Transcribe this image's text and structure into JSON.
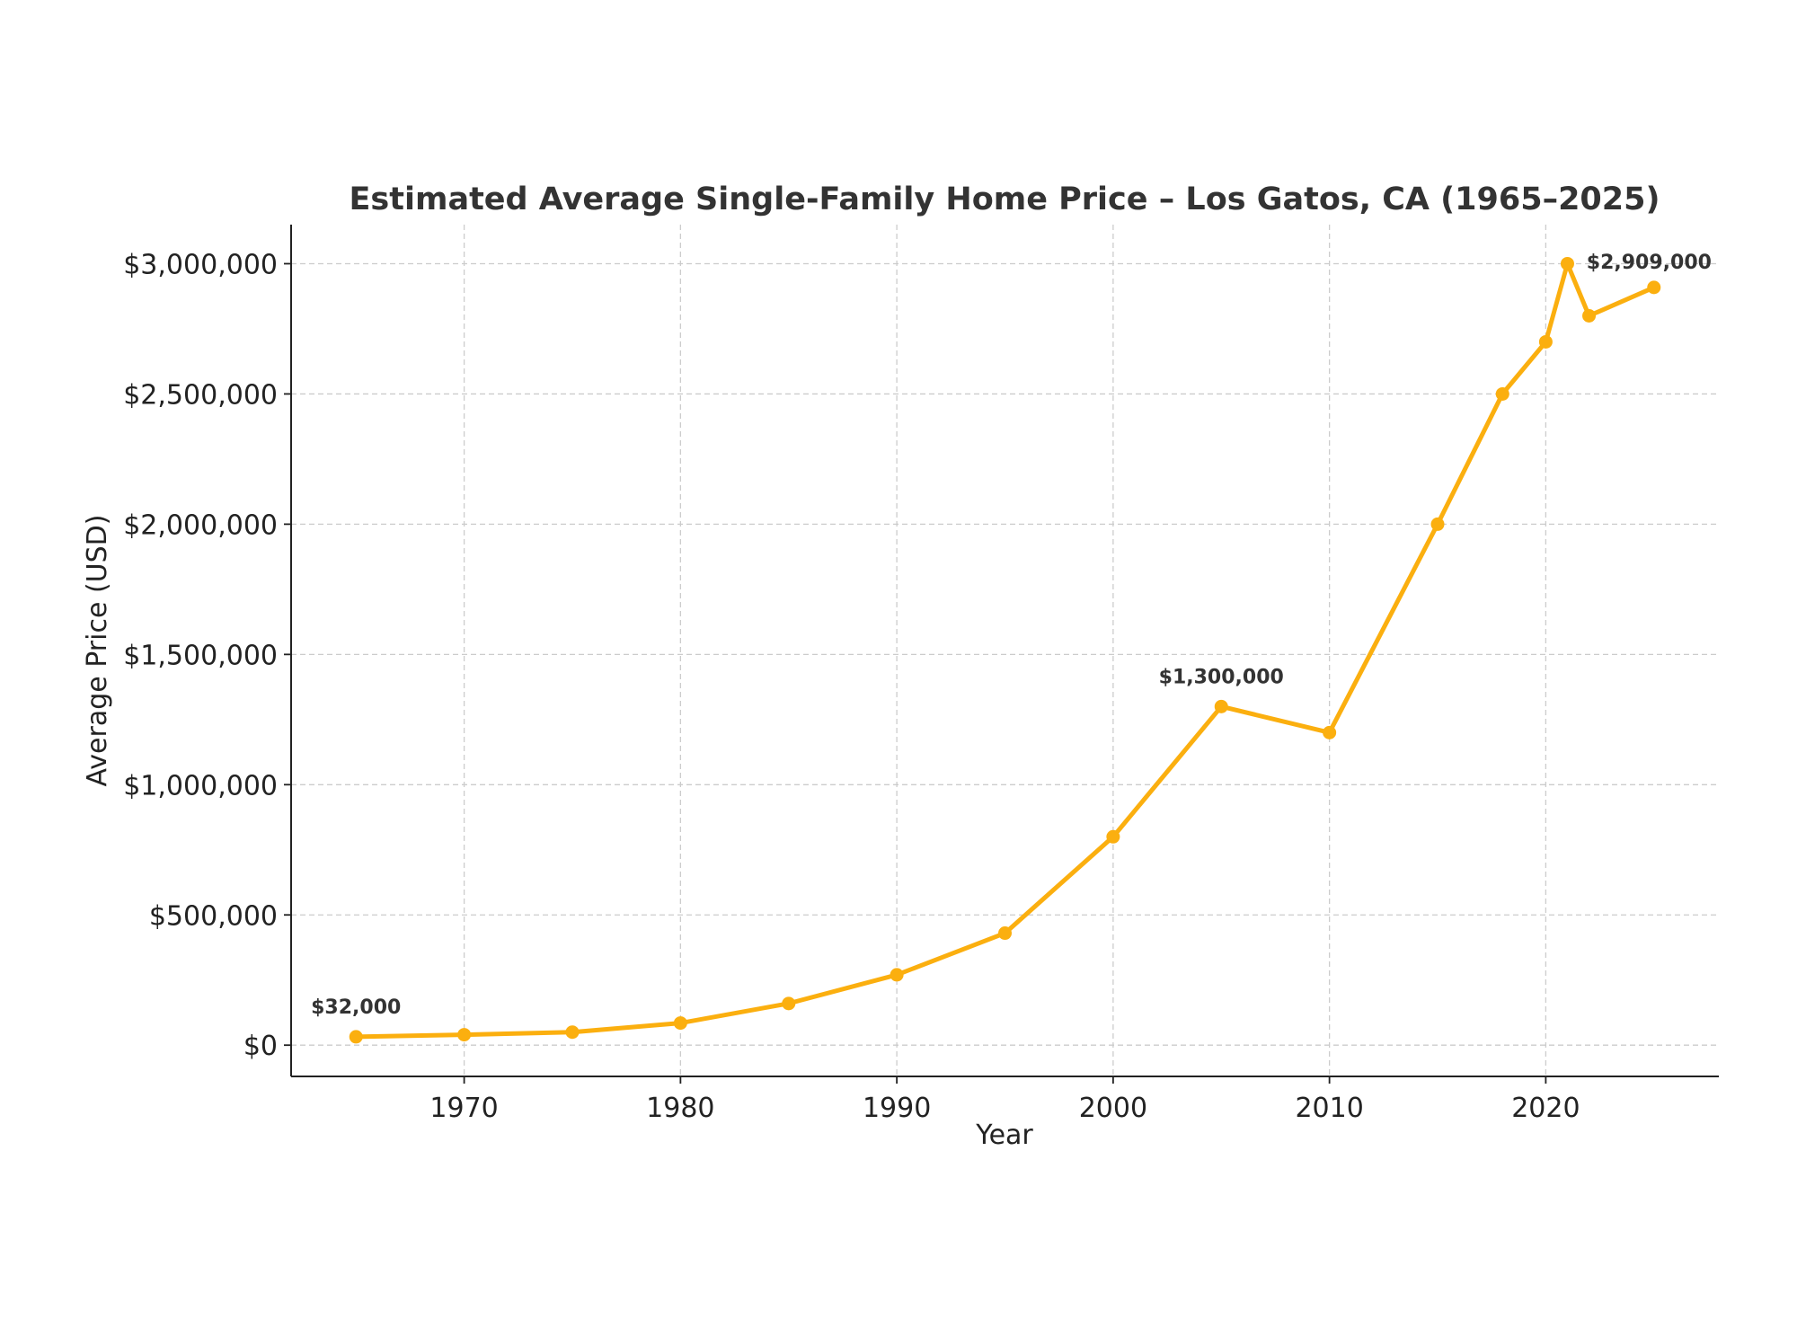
{
  "chart_data": {
    "type": "line",
    "title": "Estimated Average Single-Family Home Price – Los Gatos, CA (1965–2025)",
    "xlabel": "Year",
    "ylabel": "Average Price (USD)",
    "xlim": [
      1962,
      2028
    ],
    "ylim": [
      -120000,
      3150000
    ],
    "xticks": [
      1970,
      1980,
      1990,
      2000,
      2010,
      2020
    ],
    "xtick_labels": [
      "1970",
      "1980",
      "1990",
      "2000",
      "2010",
      "2020"
    ],
    "yticks": [
      0,
      500000,
      1000000,
      1500000,
      2000000,
      2500000,
      3000000
    ],
    "ytick_labels": [
      "$0",
      "$500,000",
      "$1,000,000",
      "$1,500,000",
      "$2,000,000",
      "$2,500,000",
      "$3,000,000"
    ],
    "grid": true,
    "color": "#FBAF0F",
    "series": [
      {
        "x": [
          1965,
          1970,
          1975,
          1980,
          1985,
          1990,
          1995,
          2000,
          2005,
          2010,
          2015,
          2018,
          2020,
          2021,
          2022,
          2025
        ],
        "values": [
          32000,
          40000,
          50000,
          85000,
          160000,
          270000,
          430000,
          800000,
          1300000,
          1200000,
          2000000,
          2500000,
          2700000,
          3000000,
          2800000,
          2909000
        ]
      }
    ],
    "annotations": [
      {
        "x": 1965,
        "y": 32000,
        "text": "$32,000"
      },
      {
        "x": 2005,
        "y": 1300000,
        "text": "$1,300,000"
      },
      {
        "x": 2025,
        "y": 2909000,
        "text": "$2,909,000"
      }
    ]
  }
}
